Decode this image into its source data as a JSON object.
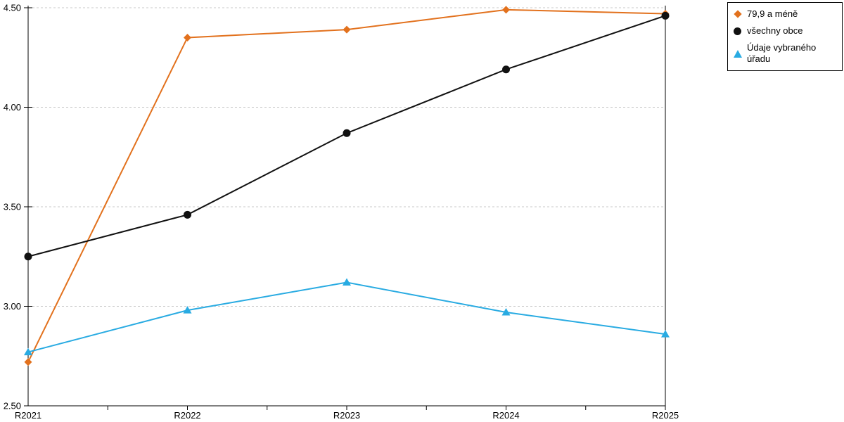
{
  "chart_data": {
    "type": "line",
    "title": "",
    "xlabel": "",
    "ylabel": "",
    "categories": [
      "R2021",
      "R2022",
      "R2023",
      "R2024",
      "R2025"
    ],
    "series": [
      {
        "name": "79,9 a méně",
        "marker": "diamond",
        "color": "#e2711d",
        "values": [
          2.72,
          4.35,
          4.39,
          4.49,
          4.47
        ]
      },
      {
        "name": "všechny obce",
        "marker": "circle",
        "color": "#111111",
        "values": [
          3.25,
          3.46,
          3.87,
          4.19,
          4.46
        ]
      },
      {
        "name": "Údaje vybraného úřadu",
        "marker": "triangle",
        "color": "#29abe2",
        "values": [
          2.77,
          2.98,
          3.12,
          2.97,
          2.86
        ]
      }
    ],
    "ylim": [
      2.5,
      4.5
    ],
    "ytick_step": 0.5,
    "ytick_labels": [
      "2.50",
      "3.00",
      "3.50",
      "4.00",
      "4.50"
    ],
    "grid": "horizontal-dashed",
    "grid_color": "#c9c9c9",
    "axis_color": "#000000",
    "legend": {
      "position": "top-right",
      "border_color": "#000000",
      "background": "#ffffff"
    }
  }
}
